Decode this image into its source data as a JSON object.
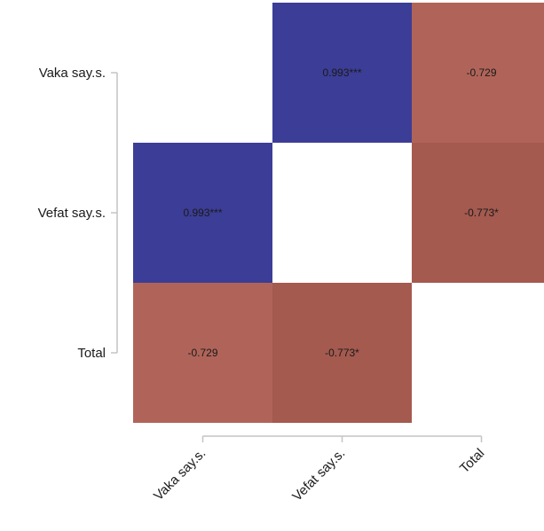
{
  "chart_data": {
    "type": "heatmap",
    "title": "",
    "xlabel": "",
    "ylabel": "",
    "x_categories": [
      "Vaka say.s.",
      "Vefat say.s.",
      "Total"
    ],
    "y_categories": [
      "Vaka say.s.",
      "Vefat say.s.",
      "Total"
    ],
    "cells": [
      {
        "row": 0,
        "col": 1,
        "value": 0.993,
        "label": "0.993***"
      },
      {
        "row": 0,
        "col": 2,
        "value": -0.729,
        "label": "-0.729"
      },
      {
        "row": 1,
        "col": 0,
        "value": 0.993,
        "label": "0.993***"
      },
      {
        "row": 1,
        "col": 2,
        "value": -0.773,
        "label": "-0.773*"
      },
      {
        "row": 2,
        "col": 0,
        "value": -0.729,
        "label": "-0.729"
      },
      {
        "row": 2,
        "col": 1,
        "value": -0.773,
        "label": "-0.773*"
      }
    ],
    "color_scale": {
      "positive": "#3b3d96",
      "negative_weak": "#b06459",
      "negative_strong": "#a45a4f"
    }
  }
}
